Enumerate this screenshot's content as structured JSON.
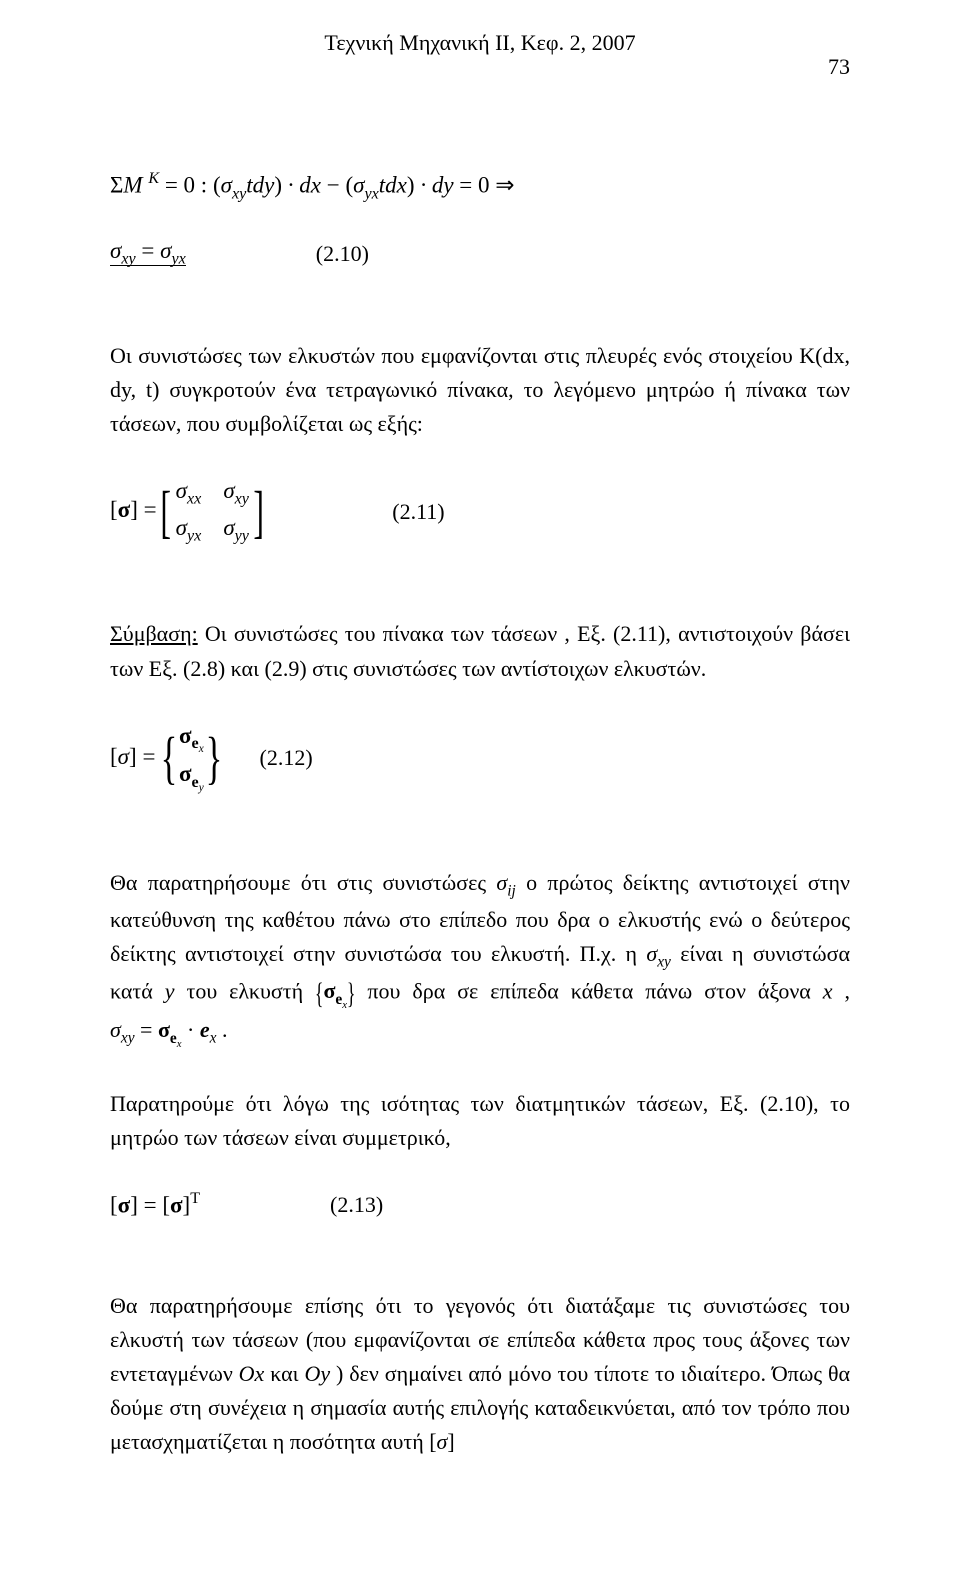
{
  "page": {
    "running_head": "Τεχνική Μηχανική ΙΙ, Κεφ. 2, 2007",
    "number": "73"
  },
  "equations": {
    "moment_sum": "ΣM K = 0 : (σxy tdy) · dx − (σyx tdx) · dy = 0 ⇒",
    "sym": "σxy = σyx",
    "sym_num": "(2.10)",
    "matrix_lhs": "[σ] =",
    "m11": "σxx",
    "m12": "σxy",
    "m21": "σyx",
    "m22": "σyy",
    "matrix_num": "(2.11)",
    "vec_lhs": "[σ] =",
    "vec_top": "σex",
    "vec_bot": "σey",
    "vec_num": "(2.12)",
    "sym_mtx": "[σ] = [σ]T",
    "sym_mtx_num": "(2.13)"
  },
  "paragraphs": {
    "p1": "Οι συνιστώσες των ελκυστών που εμφανίζονται στις πλευρές ενός στοιχείου K(dx, dy, t) συγκροτούν ένα τετραγωνικό πίνακα, το λεγόμενο μητρώο ή πίνακα των τάσεων, που συμβολίζεται ως εξής:",
    "p2a": "Σύμβαση:",
    "p2b": " Οι συνιστώσες του πίνακα των τάσεων , Εξ. (2.11), αντιστοιχούν βάσει των Εξ. (2.8) και (2.9) στις συνιστώσες των αντίστοιχων ελκυστών.",
    "p3a": "Θα παρατηρήσουμε ότι στις συνιστώσες ",
    "p3b": " ο πρώτος δείκτης αντιστοιχεί στην κατεύθυνση της καθέτου πάνω στο επίπεδο που δρα ο ελκυστής ενώ ο δεύτερος δείκτης αντιστοιχεί στην συνιστώσα του ελκυστή. Π.χ. η ",
    "p3c": " είναι η συνιστώσα κατά ",
    "p3d": " του ελκυστή ",
    "p3e": " που δρα σε επίπεδα κάθετα πάνω στον άξονα ",
    "p3f": ",  ",
    "p3g": ".",
    "p4": "Παρατηρούμε ότι λόγω της ισότητας των διατμητικών τάσεων, Εξ. (2.10), το μητρώο των τάσεων είναι συμμετρικό,",
    "p5a": "Θα παρατηρήσουμε επίσης ότι το γεγονός ότι διατάξαμε τις συνιστώσες του ελκυστή των τάσεων (που εμφανίζονται σε επίπεδα κάθετα προς τους άξονες των εντεταγμένων ",
    "p5b": " και ",
    "p5c": ") δεν σημαίνει από μόνο του τίποτε το ιδιαίτερο. Όπως θα δούμε στη συνέχεια η σημασία αυτής επιλογής καταδεικνύεται, από τον τρόπο που μετασχηματίζεται η ποσότητα αυτή "
  },
  "inline": {
    "sigma_ij": "σij",
    "sigma_xy": "σxy",
    "y": "y",
    "sigma_e_x": "σex",
    "x": "x",
    "sigma_xy_eq": "σxy = σex · ex",
    "Ox": "Ox",
    "Oy": "Oy",
    "sigma_bracket": "[σ]"
  }
}
